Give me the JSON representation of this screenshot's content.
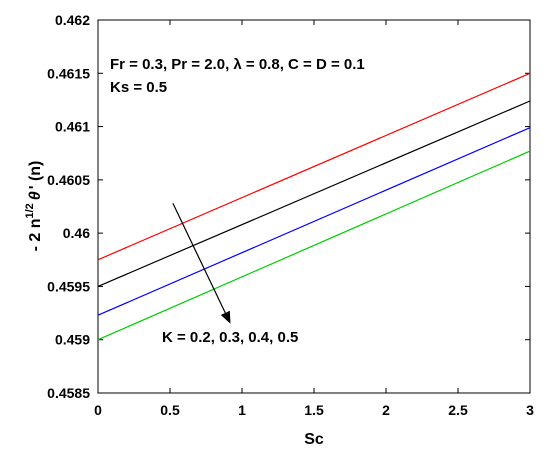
{
  "chart_data": {
    "type": "line",
    "xlabel": "Sc",
    "ylabel_parts": {
      "prefix": "- 2 n",
      "superscript": "1/2",
      "symbol": "θ",
      "suffix": "' (n)"
    },
    "xlim": [
      0,
      3
    ],
    "ylim": [
      0.4585,
      0.462
    ],
    "xticks": [
      "0",
      "0.5",
      "1",
      "1.5",
      "2",
      "2.5",
      "3"
    ],
    "xtick_values": [
      0,
      0.5,
      1,
      1.5,
      2,
      2.5,
      3
    ],
    "yticks": [
      "0.4585",
      "0.459",
      "0.4595",
      "0.46",
      "0.4605",
      "0.461",
      "0.4615",
      "0.462"
    ],
    "ytick_values": [
      0.4585,
      0.459,
      0.4595,
      0.46,
      0.4605,
      0.461,
      0.4615,
      0.462
    ],
    "grid": false,
    "series": [
      {
        "color": "#ff0000",
        "x": [
          0,
          3
        ],
        "y": [
          0.45975,
          0.4615
        ]
      },
      {
        "color": "#000000",
        "x": [
          0,
          3
        ],
        "y": [
          0.4595,
          0.46124
        ]
      },
      {
        "color": "#0000ff",
        "x": [
          0,
          3
        ],
        "y": [
          0.45923,
          0.46099
        ]
      },
      {
        "color": "#00cc00",
        "x": [
          0,
          3
        ],
        "y": [
          0.459,
          0.46077
        ]
      }
    ],
    "annotations": {
      "params_line1": "Fr = 0.3, Pr = 2.0, λ = 0.8, C = D = 0.1",
      "params_line2": "Ks = 0.5",
      "k_label": "K = 0.2, 0.3, 0.4, 0.5"
    },
    "arrow": {
      "from": [
        0.52,
        0.46028
      ],
      "to": [
        0.92,
        0.45915
      ]
    }
  }
}
